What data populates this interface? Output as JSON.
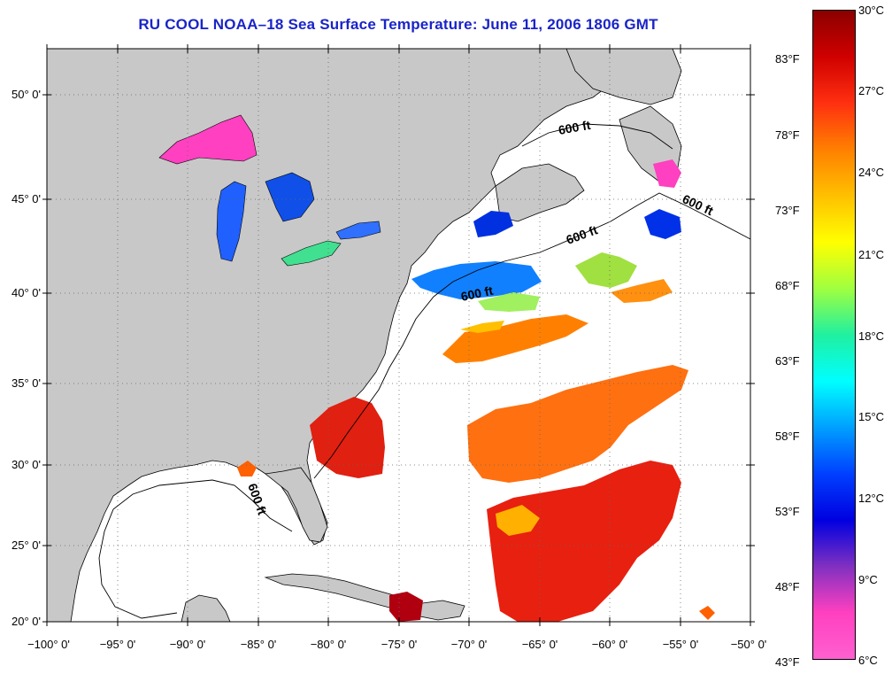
{
  "title": "RU COOL  NOAA–18  Sea Surface Temperature:  June 11, 2006 1806 GMT",
  "lat_labels": [
    "50° 0'",
    "45° 0'",
    "40° 0'",
    "35° 0'",
    "30° 0'",
    "25° 0'",
    "20° 0'"
  ],
  "lon_labels": [
    "−100° 0'",
    "−95° 0'",
    "−90° 0'",
    "−85° 0'",
    "−80° 0'",
    "−75° 0'",
    "−70° 0'",
    "−65° 0'",
    "−60° 0'",
    "−55° 0'",
    "−50° 0'"
  ],
  "contour_labels": [
    "600 ft",
    "600 ft",
    "600 ft",
    "600 ft",
    "600 ft"
  ],
  "colorbar": {
    "celsius": [
      "30°C",
      "27°C",
      "24°C",
      "21°C",
      "18°C",
      "15°C",
      "12°C",
      "9°C",
      "6°C"
    ],
    "fahrenheit": [
      "83°F",
      "78°F",
      "73°F",
      "68°F",
      "63°F",
      "58°F",
      "53°F",
      "48°F",
      "43°F"
    ],
    "colors": [
      "#8b0000",
      "#d00000",
      "#ff3010",
      "#ff8000",
      "#ffc000",
      "#ffff00",
      "#a0ff40",
      "#20f0a0",
      "#00ffff",
      "#00a0ff",
      "#0040ff",
      "#0000e0",
      "#8030c0",
      "#ff40c0",
      "#ff60d0"
    ]
  },
  "colors": {
    "land": "#c8c8c8",
    "ocean": "#ffffff",
    "title": "#1a24c8"
  }
}
